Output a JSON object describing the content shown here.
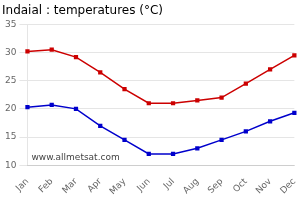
{
  "chart_data": {
    "type": "line",
    "title": "Indaial : temperatures (°C)",
    "categories": [
      "Jan",
      "Feb",
      "Mar",
      "Apr",
      "May",
      "Jun",
      "Jul",
      "Aug",
      "Sep",
      "Oct",
      "Nov",
      "Dec"
    ],
    "series": [
      {
        "color": "#cc0000",
        "values": [
          30.2,
          30.5,
          29.2,
          26.5,
          23.5,
          21.0,
          21.0,
          21.5,
          22.0,
          24.5,
          27.0,
          29.5
        ]
      },
      {
        "color": "#0000cc",
        "values": [
          20.3,
          20.7,
          20.0,
          17.0,
          14.5,
          12.0,
          12.0,
          13.0,
          14.5,
          16.0,
          17.8,
          19.3
        ]
      }
    ],
    "marker": "square",
    "line_style": "solid",
    "ylim": [
      10,
      35
    ],
    "yticks": [
      10,
      15,
      20,
      25,
      30,
      35
    ],
    "grid": "y",
    "annotations": [
      "www.allmetsat.com"
    ]
  }
}
